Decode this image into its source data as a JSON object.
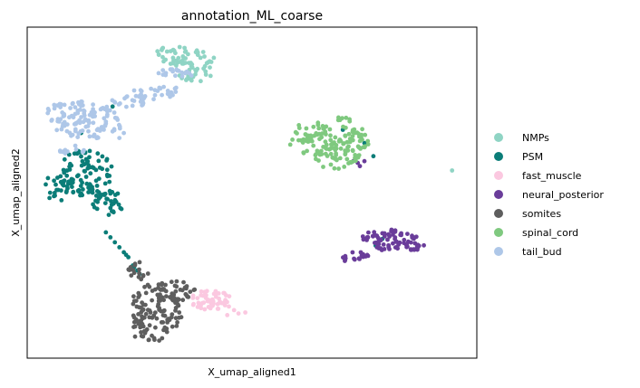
{
  "chart_data": {
    "type": "scatter",
    "title": "annotation_ML_coarse",
    "xlabel": "X_umap_aligned1",
    "ylabel": "X_umap_aligned2",
    "xlim": [
      0,
      100
    ],
    "ylim": [
      0,
      100
    ],
    "grid": false,
    "legend_placement": "right",
    "series": [
      {
        "name": "NMPs",
        "color": "#8fd4c4",
        "clusters": [
          {
            "cx": 35.5,
            "cy": 90.7,
            "rx": 7,
            "ry": 3.2,
            "n": 55,
            "rot": -15
          },
          {
            "cx": 37.5,
            "cy": 85.6,
            "rx": 4,
            "ry": 2,
            "n": 20,
            "rot": 0
          }
        ],
        "points": [
          [
            94.5,
            56.7
          ]
        ]
      },
      {
        "name": "PSM",
        "color": "#0b7d78",
        "clusters": [
          {
            "cx": 13.0,
            "cy": 56.0,
            "rx": 6,
            "ry": 7,
            "n": 90,
            "rot": 0
          },
          {
            "cx": 7.0,
            "cy": 52.0,
            "rx": 3,
            "ry": 5,
            "n": 25,
            "rot": 0
          },
          {
            "cx": 18.0,
            "cy": 47.0,
            "rx": 3.5,
            "ry": 4,
            "n": 35,
            "rot": 0
          }
        ],
        "points": [
          [
            17.5,
            38.0
          ],
          [
            18.5,
            36.5
          ],
          [
            19.5,
            35.0
          ],
          [
            20.5,
            33.5
          ],
          [
            21.5,
            32.0
          ],
          [
            22.5,
            30.5
          ],
          [
            23.5,
            28.0
          ],
          [
            24.5,
            26.5
          ],
          [
            23.8,
            27.5
          ],
          [
            22.0,
            31.2
          ],
          [
            19.0,
            76.0
          ],
          [
            12.0,
            68.0
          ],
          [
            25.0,
            25.5
          ],
          [
            70.2,
            69.0
          ],
          [
            77.0,
            61.0
          ],
          [
            74.0,
            63.5
          ],
          [
            75.0,
            65.0
          ],
          [
            77.5,
            34.0
          ],
          [
            79.0,
            36.0
          ]
        ]
      },
      {
        "name": "fast_muscle",
        "color": "#fbc8e0",
        "clusters": [
          {
            "cx": 41.0,
            "cy": 17.5,
            "rx": 5,
            "ry": 3,
            "n": 55,
            "rot": 0
          }
        ],
        "points": [
          [
            47.0,
            13.5
          ],
          [
            48.5,
            13.8
          ],
          [
            46.0,
            14.5
          ],
          [
            44.5,
            13.0
          ]
        ]
      },
      {
        "name": "neural_posterior",
        "color": "#6a3d9a",
        "clusters": [
          {
            "cx": 81.5,
            "cy": 35.5,
            "rx": 7,
            "ry": 3.5,
            "n": 85,
            "rot": -10
          },
          {
            "cx": 73.0,
            "cy": 30.5,
            "rx": 3,
            "ry": 2,
            "n": 18,
            "rot": 0
          }
        ],
        "points": [
          [
            72.5,
            59.5
          ],
          [
            74.0,
            58.0
          ],
          [
            73.5,
            59.0
          ],
          [
            75.0,
            59.5
          ]
        ]
      },
      {
        "name": "somites",
        "color": "#5e5e5e",
        "clusters": [
          {
            "cx": 28.5,
            "cy": 14.0,
            "rx": 6,
            "ry": 9,
            "n": 120,
            "rot": 0
          },
          {
            "cx": 33.0,
            "cy": 20.0,
            "rx": 4.5,
            "ry": 3.5,
            "n": 35,
            "rot": 0
          },
          {
            "cx": 24.5,
            "cy": 26.0,
            "rx": 2.5,
            "ry": 2.5,
            "n": 15,
            "rot": 0
          }
        ],
        "points": [
          [
            23.0,
            27.5
          ],
          [
            24.0,
            28.5
          ],
          [
            25.0,
            29.0
          ],
          [
            30.0,
            6.0
          ],
          [
            27.0,
            5.5
          ],
          [
            24.0,
            6.5
          ]
        ]
      },
      {
        "name": "spinal_cord",
        "color": "#7fc97f",
        "clusters": [
          {
            "cx": 68.5,
            "cy": 65.0,
            "rx": 7.5,
            "ry": 8,
            "n": 135,
            "rot": -25
          },
          {
            "cx": 62.0,
            "cy": 68.0,
            "rx": 3,
            "ry": 3,
            "n": 20,
            "rot": 0
          }
        ],
        "points": [
          [
            59.0,
            66.0
          ],
          [
            58.5,
            64.5
          ]
        ]
      },
      {
        "name": "tail_bud",
        "color": "#aec7e8",
        "clusters": [
          {
            "cx": 12.5,
            "cy": 72.0,
            "rx": 9,
            "ry": 5.5,
            "n": 120,
            "rot": -10
          },
          {
            "cx": 26.0,
            "cy": 79.0,
            "rx": 8,
            "ry": 2.5,
            "n": 50,
            "rot": 15
          },
          {
            "cx": 33.0,
            "cy": 86.0,
            "rx": 4,
            "ry": 1.5,
            "n": 20,
            "rot": 0
          },
          {
            "cx": 10.0,
            "cy": 63.0,
            "rx": 3,
            "ry": 1.5,
            "n": 12,
            "rot": 0
          }
        ],
        "points": [
          [
            6.0,
            76.5
          ],
          [
            5.5,
            72.0
          ],
          [
            20.5,
            66.5
          ],
          [
            21.5,
            68.0
          ],
          [
            19.0,
            68.5
          ]
        ]
      }
    ]
  }
}
